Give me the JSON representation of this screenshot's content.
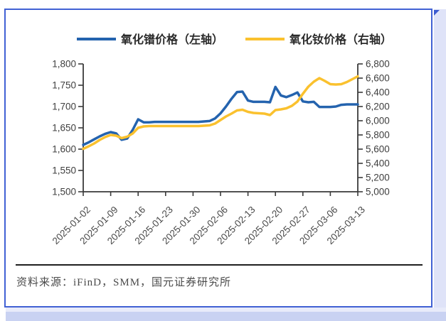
{
  "legend": [
    {
      "label": "氧化镨价格（左轴）",
      "color": "#2463AE"
    },
    {
      "label": "氧化钕价格（右轴）",
      "color": "#FAC12E"
    }
  ],
  "footer": {
    "source_text": "资料来源：iFinD，SMM，国元证券研究所"
  },
  "chart_data": {
    "type": "line",
    "title": "",
    "legend_position": "top",
    "grid": false,
    "x_tick_labels": [
      "2025-01-02",
      "2025-01-09",
      "2025-01-16",
      "2025-01-23",
      "2025-01-30",
      "2025-02-06",
      "2025-02-13",
      "2025-02-20",
      "2025-02-27",
      "2025-03-06",
      "2025-03-13"
    ],
    "left_axis": {
      "label": "",
      "min": 1500,
      "max": 1800,
      "step": 50,
      "tick_labels": [
        "1,800",
        "1,750",
        "1,700",
        "1,650",
        "1,600",
        "1,550",
        "1,500"
      ]
    },
    "right_axis": {
      "label": "",
      "min": 5000,
      "max": 6800,
      "step": 200,
      "tick_labels": [
        "6,800",
        "6,600",
        "6,400",
        "6,200",
        "6,000",
        "5,800",
        "5,600",
        "5,400",
        "5,200",
        "5,000"
      ]
    },
    "series": [
      {
        "name": "氧化镨价格（左轴）",
        "axis": "left",
        "color": "#2463AE",
        "values": [
          1610,
          1616,
          1623,
          1630,
          1636,
          1640,
          1637,
          1622,
          1625,
          1645,
          1670,
          1663,
          1663,
          1664,
          1664,
          1664,
          1664,
          1664,
          1664,
          1664,
          1664,
          1664,
          1665,
          1666,
          1672,
          1684,
          1700,
          1718,
          1734,
          1735,
          1714,
          1711,
          1711,
          1711,
          1710,
          1746,
          1726,
          1722,
          1727,
          1733,
          1712,
          1710,
          1711,
          1699,
          1699,
          1699,
          1700,
          1704,
          1705,
          1705,
          1705
        ]
      },
      {
        "name": "氧化钕价格（右轴）",
        "axis": "right",
        "color": "#FAC12E",
        "values": [
          5605,
          5640,
          5680,
          5730,
          5770,
          5800,
          5790,
          5755,
          5775,
          5820,
          5900,
          5920,
          5925,
          5925,
          5925,
          5925,
          5925,
          5925,
          5925,
          5925,
          5925,
          5925,
          5930,
          5935,
          5960,
          6010,
          6060,
          6100,
          6145,
          6155,
          6125,
          6110,
          6105,
          6100,
          6080,
          6150,
          6160,
          6175,
          6210,
          6270,
          6380,
          6480,
          6550,
          6600,
          6560,
          6515,
          6510,
          6515,
          6545,
          6585,
          6625
        ]
      }
    ]
  }
}
